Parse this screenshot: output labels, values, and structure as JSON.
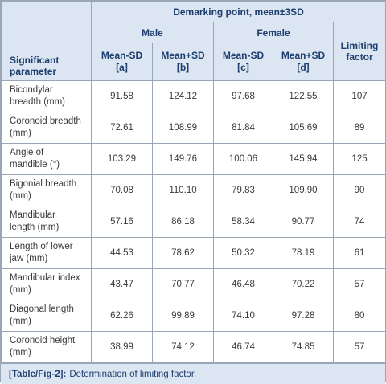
{
  "table": {
    "title": "Demarking point, mean±3SD",
    "groups": {
      "male": "Male",
      "female": "Female"
    },
    "headers": {
      "parameter": [
        "Significant",
        "parameter"
      ],
      "male_minus": [
        "Mean-SD",
        "[a]"
      ],
      "male_plus": [
        "Mean+SD",
        "[b]"
      ],
      "female_minus": [
        "Mean-SD",
        "[c]"
      ],
      "female_plus": [
        "Mean+SD",
        "[d]"
      ],
      "limiting": [
        "Limiting",
        "factor"
      ]
    },
    "rows": [
      {
        "param": [
          "Bicondylar",
          "breadth (mm)"
        ],
        "a": "91.58",
        "b": "124.12",
        "c": "97.68",
        "d": "122.55",
        "lf": "107"
      },
      {
        "param": [
          "Coronoid breadth",
          "(mm)"
        ],
        "a": "72.61",
        "b": "108.99",
        "c": "81.84",
        "d": "105.69",
        "lf": "89"
      },
      {
        "param": [
          "Angle of",
          "mandible (°)"
        ],
        "a": "103.29",
        "b": "149.76",
        "c": "100.06",
        "d": "145.94",
        "lf": "125"
      },
      {
        "param": [
          "Bigonial breadth",
          "(mm)"
        ],
        "a": "70.08",
        "b": "110.10",
        "c": "79.83",
        "d": "109.90",
        "lf": "90"
      },
      {
        "param": [
          "Mandibular",
          "length (mm)"
        ],
        "a": "57.16",
        "b": "86.18",
        "c": "58.34",
        "d": "90.77",
        "lf": "74"
      },
      {
        "param": [
          "Length of lower",
          "jaw (mm)"
        ],
        "a": "44.53",
        "b": "78.62",
        "c": "50.32",
        "d": "78.19",
        "lf": "61"
      },
      {
        "param": [
          "Mandibular index",
          "(mm)"
        ],
        "a": "43.47",
        "b": "70.77",
        "c": "46.48",
        "d": "70.22",
        "lf": "57"
      },
      {
        "param": [
          "Diagonal length",
          "(mm)"
        ],
        "a": "62.26",
        "b": "99.89",
        "c": "74.10",
        "d": "97.28",
        "lf": "80"
      },
      {
        "param": [
          "Coronoid height",
          "(mm)"
        ],
        "a": "38.99",
        "b": "74.12",
        "c": "46.74",
        "d": "74.85",
        "lf": "57"
      }
    ]
  },
  "caption": {
    "label": "[Table/Fig-2]:",
    "text": "Determination of limiting factor."
  },
  "colors": {
    "header_bg": "#dce6f2",
    "header_text": "#1d3e6e",
    "border": "#9aa6b4"
  }
}
